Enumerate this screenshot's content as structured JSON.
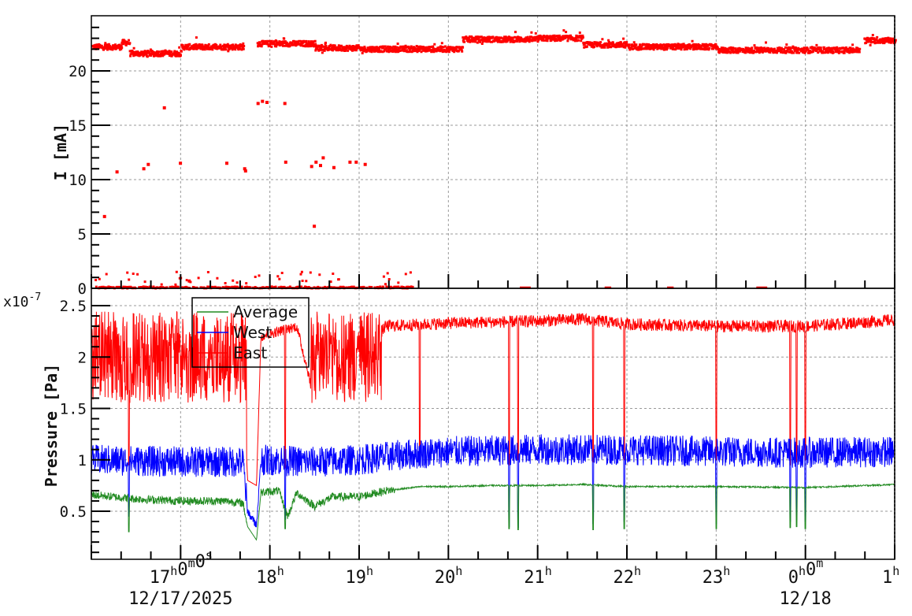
{
  "chart_data": [
    {
      "type": "scatter",
      "title": "",
      "xlabel": "",
      "ylabel": "I [mA]",
      "ylim": [
        0,
        25
      ],
      "yticks": [
        "0",
        "5",
        "10",
        "15",
        "20"
      ],
      "xrange_hours": [
        16,
        25
      ],
      "grid": true,
      "series": [
        {
          "name": "I",
          "color": "#ff0000",
          "baseline_segments": [
            {
              "from": 16.0,
              "to": 16.33,
              "value": 22.2
            },
            {
              "from": 16.33,
              "to": 16.42,
              "value": 22.6
            },
            {
              "from": 16.42,
              "to": 17.0,
              "value": 21.6
            },
            {
              "from": 17.0,
              "to": 17.7,
              "value": 22.2
            },
            {
              "from": 17.85,
              "to": 18.5,
              "value": 22.5
            },
            {
              "from": 18.5,
              "to": 19.0,
              "value": 22.1
            },
            {
              "from": 19.0,
              "to": 20.15,
              "value": 22.0
            },
            {
              "from": 20.15,
              "to": 21.0,
              "value": 22.9
            },
            {
              "from": 21.0,
              "to": 21.5,
              "value": 23.0
            },
            {
              "from": 21.5,
              "to": 22.0,
              "value": 22.4
            },
            {
              "from": 22.0,
              "to": 23.0,
              "value": 22.2
            },
            {
              "from": 23.0,
              "to": 24.6,
              "value": 21.9
            },
            {
              "from": 24.65,
              "to": 25.0,
              "value": 22.8
            }
          ],
          "outliers": [
            [
              16.13,
              6.6
            ],
            [
              16.27,
              10.7
            ],
            [
              16.57,
              11.0
            ],
            [
              16.62,
              11.4
            ],
            [
              16.8,
              16.6
            ],
            [
              16.98,
              11.5
            ],
            [
              17.5,
              11.5
            ],
            [
              17.7,
              11.0
            ],
            [
              17.71,
              10.8
            ],
            [
              17.85,
              17.0
            ],
            [
              17.9,
              17.2
            ],
            [
              17.95,
              17.1
            ],
            [
              18.15,
              17.0
            ],
            [
              18.16,
              11.6
            ],
            [
              18.45,
              11.2
            ],
            [
              18.5,
              11.6
            ],
            [
              18.55,
              11.3
            ],
            [
              18.58,
              12.0
            ],
            [
              18.7,
              11.1
            ],
            [
              18.88,
              11.6
            ],
            [
              18.95,
              11.6
            ],
            [
              19.05,
              11.4
            ],
            [
              18.48,
              5.7
            ]
          ],
          "near_zero_note": "dense points at ~0 mA, occasional excursions to 0.5–1.5 mA between 16h and 19h30"
        }
      ]
    },
    {
      "type": "line",
      "title": "",
      "xlabel": "",
      "ylabel": "Pressure [Pa]",
      "yscale_label": "x10^-7",
      "ylim": [
        0.0,
        2.6
      ],
      "yticks": [
        "0.5",
        "1",
        "1.5",
        "2",
        "2.5"
      ],
      "xrange_hours": [
        16,
        25
      ],
      "xticks": [
        {
          "hour": 17,
          "label": "17h0m0s",
          "sublabel": "12/17/2025"
        },
        {
          "hour": 18,
          "label": "18h"
        },
        {
          "hour": 19,
          "label": "19h"
        },
        {
          "hour": 20,
          "label": "20h"
        },
        {
          "hour": 21,
          "label": "21h"
        },
        {
          "hour": 22,
          "label": "22h"
        },
        {
          "hour": 23,
          "label": "23h"
        },
        {
          "hour": 24,
          "label": "0h0m",
          "sublabel": "12/18"
        },
        {
          "hour": 25,
          "label": "1h"
        }
      ],
      "grid": true,
      "legend": {
        "position": "top-left-inside",
        "entries": [
          "Average",
          "West",
          "East"
        ]
      },
      "series": [
        {
          "name": "Average",
          "color": "#228b22",
          "profile": [
            [
              16.0,
              0.66
            ],
            [
              16.5,
              0.62
            ],
            [
              17.0,
              0.6
            ],
            [
              17.5,
              0.6
            ],
            [
              17.7,
              0.58
            ],
            [
              17.75,
              0.35
            ],
            [
              17.85,
              0.22
            ],
            [
              17.9,
              0.68
            ],
            [
              18.1,
              0.7
            ],
            [
              18.2,
              0.45
            ],
            [
              18.3,
              0.68
            ],
            [
              18.5,
              0.55
            ],
            [
              18.7,
              0.64
            ],
            [
              19.0,
              0.64
            ],
            [
              19.3,
              0.7
            ],
            [
              19.7,
              0.74
            ],
            [
              20.0,
              0.74
            ],
            [
              20.5,
              0.75
            ],
            [
              21.0,
              0.75
            ],
            [
              21.5,
              0.76
            ],
            [
              22.0,
              0.74
            ],
            [
              23.0,
              0.74
            ],
            [
              24.0,
              0.73
            ],
            [
              25.0,
              0.76
            ]
          ],
          "noise": 0.08,
          "late_noise": 0.015,
          "dips": [
            [
              16.42,
              0.3
            ],
            [
              17.82,
              0.2
            ],
            [
              18.17,
              0.33
            ],
            [
              20.68,
              0.33
            ],
            [
              20.78,
              0.32
            ],
            [
              21.62,
              0.32
            ],
            [
              21.97,
              0.33
            ],
            [
              23.0,
              0.33
            ],
            [
              23.83,
              0.34
            ],
            [
              23.9,
              0.35
            ],
            [
              24.0,
              0.33
            ]
          ]
        },
        {
          "name": "West",
          "color": "#0000ff",
          "profile": [
            [
              16.0,
              1.0
            ],
            [
              17.0,
              0.98
            ],
            [
              17.7,
              0.98
            ],
            [
              17.75,
              0.5
            ],
            [
              17.85,
              0.36
            ],
            [
              17.9,
              1.0
            ],
            [
              18.5,
              0.98
            ],
            [
              19.0,
              1.0
            ],
            [
              19.5,
              1.05
            ],
            [
              20.0,
              1.08
            ],
            [
              21.0,
              1.1
            ],
            [
              22.0,
              1.1
            ],
            [
              23.0,
              1.08
            ],
            [
              24.0,
              1.07
            ],
            [
              25.0,
              1.08
            ]
          ],
          "noise": 0.3,
          "dips": [
            [
              16.42,
              0.45
            ],
            [
              17.82,
              0.35
            ],
            [
              18.17,
              0.42
            ],
            [
              20.68,
              0.35
            ],
            [
              20.78,
              0.34
            ],
            [
              21.62,
              0.38
            ],
            [
              21.97,
              0.4
            ],
            [
              23.0,
              0.38
            ],
            [
              23.83,
              0.4
            ],
            [
              23.9,
              0.42
            ],
            [
              24.0,
              0.4
            ]
          ]
        },
        {
          "name": "East",
          "color": "#ff0000",
          "profile": [
            [
              16.0,
              2.0
            ],
            [
              16.6,
              1.95
            ],
            [
              17.0,
              1.9
            ],
            [
              17.4,
              2.0
            ],
            [
              17.7,
              1.9
            ],
            [
              17.75,
              0.8
            ],
            [
              17.85,
              0.75
            ],
            [
              17.9,
              2.2
            ],
            [
              18.1,
              2.25
            ],
            [
              18.3,
              2.3
            ],
            [
              18.5,
              1.6
            ],
            [
              18.7,
              2.0
            ],
            [
              19.0,
              2.0
            ],
            [
              19.3,
              2.3
            ],
            [
              20.0,
              2.33
            ],
            [
              21.0,
              2.35
            ],
            [
              21.5,
              2.37
            ],
            [
              22.0,
              2.32
            ],
            [
              23.0,
              2.3
            ],
            [
              24.0,
              2.3
            ],
            [
              25.0,
              2.36
            ]
          ],
          "noise_early": 0.9,
          "noise_late": 0.12,
          "dips": [
            [
              16.42,
              0.95
            ],
            [
              17.82,
              0.75
            ],
            [
              18.17,
              0.92
            ],
            [
              19.68,
              1.05
            ],
            [
              20.68,
              0.95
            ],
            [
              20.78,
              1.0
            ],
            [
              21.62,
              0.98
            ],
            [
              21.97,
              1.0
            ],
            [
              23.0,
              1.0
            ],
            [
              23.83,
              0.95
            ],
            [
              23.9,
              0.98
            ],
            [
              24.0,
              1.0
            ]
          ]
        }
      ]
    }
  ],
  "top_panel": {
    "ylabel": "I [mA]",
    "yticks": [
      "0",
      "5",
      "10",
      "15",
      "20"
    ]
  },
  "bottom_panel": {
    "ylabel": "Pressure [Pa]",
    "scale": "x10",
    "scale_exp": "-7",
    "yticks": [
      "0.5",
      "1",
      "1.5",
      "2",
      "2.5"
    ]
  },
  "legend": {
    "items": [
      {
        "label": "Average",
        "color": "#228b22"
      },
      {
        "label": "West",
        "color": "#0000ff"
      },
      {
        "label": "East",
        "color": "#ff0000"
      }
    ]
  },
  "xaxis": {
    "ticks": [
      {
        "main": "17",
        "sup": "h",
        "main2": "0",
        "sup2": "m",
        "main3": "0",
        "sup3": "s",
        "sub": "12/17/2025"
      },
      {
        "main": "18",
        "sup": "h"
      },
      {
        "main": "19",
        "sup": "h"
      },
      {
        "main": "20",
        "sup": "h"
      },
      {
        "main": "21",
        "sup": "h"
      },
      {
        "main": "22",
        "sup": "h"
      },
      {
        "main": "23",
        "sup": "h"
      },
      {
        "main": "0",
        "sup": "h",
        "main2": "0",
        "sup2": "m",
        "sub": "12/18"
      },
      {
        "main": "1",
        "sup": "h"
      }
    ]
  }
}
